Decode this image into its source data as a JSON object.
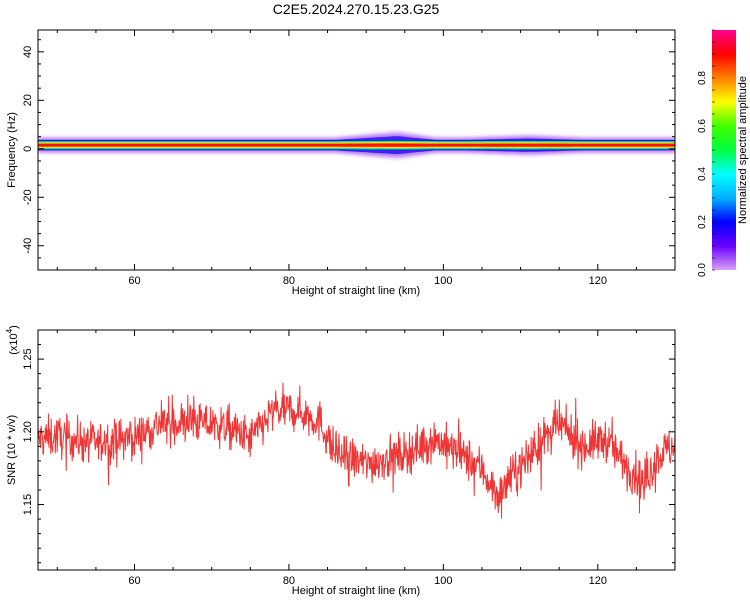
{
  "title": "C2E5.2024.270.15.23.G25",
  "colors": {
    "snr_line": "#f03535",
    "frame": "#000000",
    "background": "#ffffff"
  },
  "chart_data": [
    {
      "type": "heatmap",
      "title": "C2E5.2024.270.15.23.G25",
      "xlabel": "Height of straight line (km)",
      "ylabel": "Frequency (Hz)",
      "xlim": [
        47.5,
        130
      ],
      "ylim": [
        -50,
        49
      ],
      "x_ticks": [
        60,
        80,
        100,
        120
      ],
      "y_ticks": [
        -40,
        -20,
        0,
        20,
        40
      ],
      "colorbar": {
        "label": "Normalized spectral amplitude",
        "range": [
          0,
          1
        ],
        "ticks": [
          0.0,
          0.2,
          0.4,
          0.6,
          0.8
        ],
        "colormap": [
          "#d9a0f5",
          "#6a00ff",
          "#0000ff",
          "#00b0ff",
          "#00ffff",
          "#00ff40",
          "#40ff00",
          "#ffff00",
          "#ff8000",
          "#ff0000",
          "#ff0090"
        ]
      },
      "band": {
        "center_hz": 1.5,
        "core_halfwidth_hz": 1.0,
        "spread_halfwidth_hz": 3.5,
        "broadening": [
          {
            "from_km": 86,
            "to_km": 99,
            "peak_at_km": 94,
            "max_halfwidth_hz": 6
          },
          {
            "from_km": 103,
            "to_km": 118,
            "peak_at_km": 111,
            "max_halfwidth_hz": 4.5
          },
          {
            "from_km": 123,
            "to_km": 130,
            "peak_at_km": 128,
            "max_halfwidth_hz": 3.5
          }
        ]
      }
    },
    {
      "type": "line",
      "xlabel": "Height of straight line (km)",
      "ylabel": "SNR (10 * v/v)",
      "y_multiplier": "(x10^4)",
      "multiplier_base": "(x10",
      "multiplier_exp": "4",
      "multiplier_close": ")",
      "xlim": [
        47.5,
        130
      ],
      "ylim": [
        1.105,
        1.27
      ],
      "x_ticks": [
        60,
        80,
        100,
        120
      ],
      "y_ticks": [
        1.15,
        1.2,
        1.25
      ],
      "series": [
        {
          "x_start": 47.5,
          "x_end": 130,
          "mean_profile": [
            {
              "x": 47.5,
              "y": 1.195
            },
            {
              "x": 50,
              "y": 1.197
            },
            {
              "x": 55,
              "y": 1.192
            },
            {
              "x": 60,
              "y": 1.196
            },
            {
              "x": 63,
              "y": 1.205
            },
            {
              "x": 68,
              "y": 1.207
            },
            {
              "x": 72,
              "y": 1.203
            },
            {
              "x": 75,
              "y": 1.195
            },
            {
              "x": 78,
              "y": 1.214
            },
            {
              "x": 81,
              "y": 1.215
            },
            {
              "x": 84,
              "y": 1.207
            },
            {
              "x": 86,
              "y": 1.185
            },
            {
              "x": 90,
              "y": 1.178
            },
            {
              "x": 95,
              "y": 1.185
            },
            {
              "x": 99,
              "y": 1.195
            },
            {
              "x": 102,
              "y": 1.185
            },
            {
              "x": 105,
              "y": 1.175
            },
            {
              "x": 107,
              "y": 1.155
            },
            {
              "x": 109,
              "y": 1.17
            },
            {
              "x": 113,
              "y": 1.195
            },
            {
              "x": 115,
              "y": 1.205
            },
            {
              "x": 118,
              "y": 1.19
            },
            {
              "x": 121,
              "y": 1.195
            },
            {
              "x": 124,
              "y": 1.175
            },
            {
              "x": 126,
              "y": 1.165
            },
            {
              "x": 128,
              "y": 1.185
            },
            {
              "x": 130,
              "y": 1.19
            }
          ],
          "noise_amplitude": 0.013,
          "sample_count": 1400
        }
      ]
    }
  ]
}
